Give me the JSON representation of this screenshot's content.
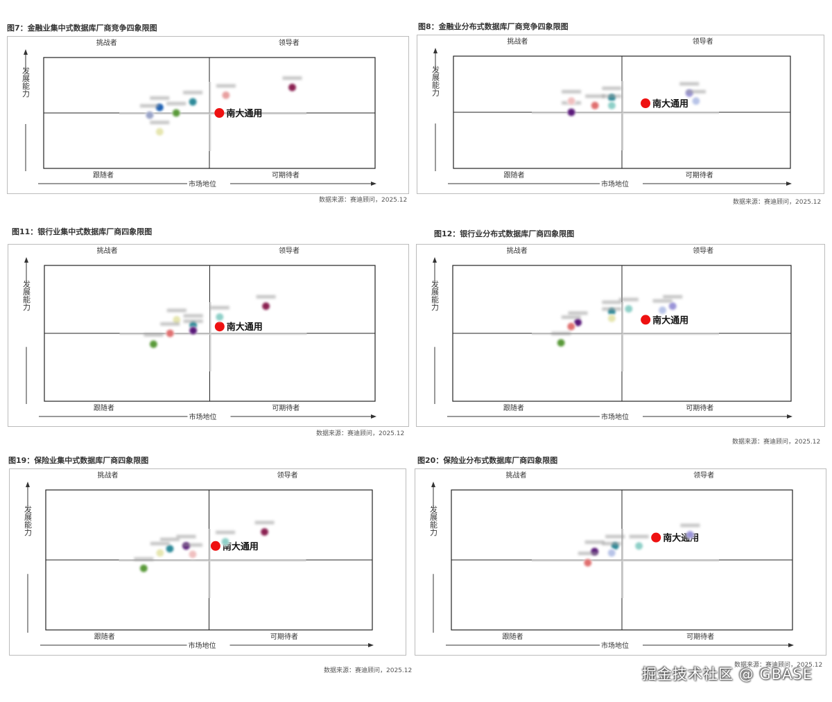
{
  "highlight_color": "#ee1111",
  "chart_data": [
    {
      "type": "scatter",
      "title": "图7：金融业集中式数据库厂商竞争四象限图",
      "quadrants": {
        "top_left": "挑战者",
        "top_right": "领导者",
        "bottom_left": "跟随者",
        "bottom_right": "可期待者"
      },
      "xlabel": "市场地位",
      "ylabel": "发展能力",
      "source": "数据来源：赛迪顾问，2025.12",
      "points": [
        {
          "label": "南大通用",
          "x": 0.53,
          "y": 0.5,
          "color": "#ee1111",
          "highlight": true
        },
        {
          "label": "",
          "x": 0.75,
          "y": 0.73,
          "color": "#8b2252"
        },
        {
          "label": "",
          "x": 0.55,
          "y": 0.66,
          "color": "#e8a0a0"
        },
        {
          "label": "",
          "x": 0.45,
          "y": 0.6,
          "color": "#2e8b9a"
        },
        {
          "label": "",
          "x": 0.35,
          "y": 0.55,
          "color": "#1a5fb4"
        },
        {
          "label": "",
          "x": 0.32,
          "y": 0.48,
          "color": "#9aa4c8"
        },
        {
          "label": "",
          "x": 0.4,
          "y": 0.5,
          "color": "#5a9a3a"
        },
        {
          "label": "",
          "x": 0.35,
          "y": 0.33,
          "color": "#e6e6b0"
        }
      ]
    },
    {
      "type": "scatter",
      "title": "图8：金融业分布式数据库厂商竞争四象限图",
      "quadrants": {
        "top_left": "挑战者",
        "top_right": "领导者",
        "bottom_left": "跟随者",
        "bottom_right": "可期待者"
      },
      "xlabel": "市场地位",
      "ylabel": "发展能力",
      "source": "数据来源：赛迪顾问，2025.12",
      "points": [
        {
          "label": "南大通用",
          "x": 0.57,
          "y": 0.58,
          "color": "#ee1111",
          "highlight": true
        },
        {
          "label": "",
          "x": 0.7,
          "y": 0.67,
          "color": "#9b95d8"
        },
        {
          "label": "",
          "x": 0.72,
          "y": 0.6,
          "color": "#b8c4e8"
        },
        {
          "label": "",
          "x": 0.47,
          "y": 0.63,
          "color": "#2e8b9a"
        },
        {
          "label": "",
          "x": 0.47,
          "y": 0.56,
          "color": "#8fd0c8"
        },
        {
          "label": "",
          "x": 0.42,
          "y": 0.56,
          "color": "#e07070"
        },
        {
          "label": "",
          "x": 0.35,
          "y": 0.5,
          "color": "#5a1a7a"
        },
        {
          "label": "",
          "x": 0.35,
          "y": 0.6,
          "color": "#f0c0c0"
        }
      ]
    },
    {
      "type": "scatter",
      "title": "图11：银行业集中式数据库厂商四象限图",
      "quadrants": {
        "top_left": "挑战者",
        "top_right": "领导者",
        "bottom_left": "跟随者",
        "bottom_right": "可期待者"
      },
      "xlabel": "市场地位",
      "ylabel": "发展能力",
      "source": "数据来源：赛迪顾问，2025.12",
      "points": [
        {
          "label": "南大通用",
          "x": 0.53,
          "y": 0.55,
          "color": "#ee1111",
          "highlight": true
        },
        {
          "label": "",
          "x": 0.67,
          "y": 0.7,
          "color": "#8b2252"
        },
        {
          "label": "",
          "x": 0.53,
          "y": 0.62,
          "color": "#8fd0c8"
        },
        {
          "label": "",
          "x": 0.4,
          "y": 0.6,
          "color": "#e6e6b0"
        },
        {
          "label": "",
          "x": 0.45,
          "y": 0.56,
          "color": "#2e8b9a"
        },
        {
          "label": "",
          "x": 0.45,
          "y": 0.52,
          "color": "#5a1a7a"
        },
        {
          "label": "",
          "x": 0.38,
          "y": 0.5,
          "color": "#e07070"
        },
        {
          "label": "",
          "x": 0.33,
          "y": 0.42,
          "color": "#5a9a3a"
        }
      ]
    },
    {
      "type": "scatter",
      "title": "图12：银行业分布式数据库厂商四象限图",
      "quadrants": {
        "top_left": "挑战者",
        "top_right": "领导者",
        "bottom_left": "跟随者",
        "bottom_right": "可期待者"
      },
      "xlabel": "市场地位",
      "ylabel": "发展能力",
      "source": "数据来源：赛迪顾问，2025.12",
      "points": [
        {
          "label": "南大通用",
          "x": 0.57,
          "y": 0.6,
          "color": "#ee1111",
          "highlight": true
        },
        {
          "label": "",
          "x": 0.65,
          "y": 0.7,
          "color": "#9b95d8"
        },
        {
          "label": "",
          "x": 0.62,
          "y": 0.67,
          "color": "#b8c4e8"
        },
        {
          "label": "",
          "x": 0.52,
          "y": 0.68,
          "color": "#8fd0c8"
        },
        {
          "label": "",
          "x": 0.47,
          "y": 0.66,
          "color": "#2e8b9a"
        },
        {
          "label": "",
          "x": 0.47,
          "y": 0.61,
          "color": "#e6e6b0"
        },
        {
          "label": "",
          "x": 0.37,
          "y": 0.58,
          "color": "#5a1a7a"
        },
        {
          "label": "",
          "x": 0.35,
          "y": 0.55,
          "color": "#e07070"
        },
        {
          "label": "",
          "x": 0.32,
          "y": 0.43,
          "color": "#5a9a3a"
        }
      ]
    },
    {
      "type": "scatter",
      "title": "图19：保险业集中式数据库厂商四象限图",
      "quadrants": {
        "top_left": "挑战者",
        "top_right": "领导者",
        "bottom_left": "跟随者",
        "bottom_right": "可期待者"
      },
      "xlabel": "市场地位",
      "ylabel": "发展能力",
      "source": "数据来源：赛迪顾问，2025.12",
      "points": [
        {
          "label": "南大通用",
          "x": 0.52,
          "y": 0.6,
          "color": "#ee1111",
          "highlight": true
        },
        {
          "label": "",
          "x": 0.67,
          "y": 0.7,
          "color": "#8b2252"
        },
        {
          "label": "",
          "x": 0.55,
          "y": 0.63,
          "color": "#8fd0c8"
        },
        {
          "label": "",
          "x": 0.43,
          "y": 0.6,
          "color": "#5a1a7a"
        },
        {
          "label": "",
          "x": 0.38,
          "y": 0.58,
          "color": "#2e8b9a"
        },
        {
          "label": "",
          "x": 0.35,
          "y": 0.55,
          "color": "#e6e6b0"
        },
        {
          "label": "",
          "x": 0.45,
          "y": 0.54,
          "color": "#f0c0c0"
        },
        {
          "label": "",
          "x": 0.3,
          "y": 0.44,
          "color": "#5a9a3a"
        }
      ]
    },
    {
      "type": "scatter",
      "title": "图20：保险业分布式数据库厂商四象限图",
      "quadrants": {
        "top_left": "挑战者",
        "top_right": "领导者",
        "bottom_left": "跟随者",
        "bottom_right": "可期待者"
      },
      "xlabel": "市场地位",
      "ylabel": "发展能力",
      "source": "数据来源：赛迪顾问，2025.12",
      "points": [
        {
          "label": "南大通用",
          "x": 0.6,
          "y": 0.66,
          "color": "#ee1111",
          "highlight": true
        },
        {
          "label": "",
          "x": 0.7,
          "y": 0.68,
          "color": "#9b95d8"
        },
        {
          "label": "",
          "x": 0.55,
          "y": 0.6,
          "color": "#8fd0c8"
        },
        {
          "label": "",
          "x": 0.48,
          "y": 0.6,
          "color": "#2e8b9a"
        },
        {
          "label": "",
          "x": 0.47,
          "y": 0.55,
          "color": "#b8c4e8"
        },
        {
          "label": "",
          "x": 0.42,
          "y": 0.56,
          "color": "#5a1a7a"
        },
        {
          "label": "",
          "x": 0.4,
          "y": 0.48,
          "color": "#e07070"
        }
      ]
    }
  ],
  "watermark": "掘金技术社区 @ GBASE"
}
